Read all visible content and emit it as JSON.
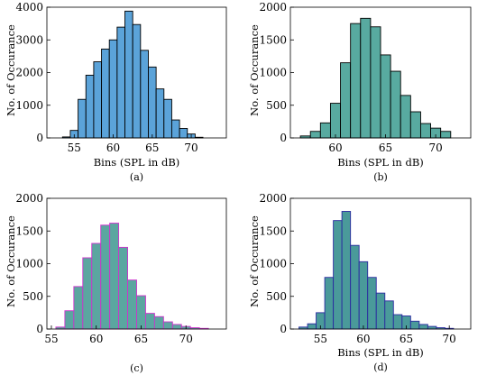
{
  "chart_data": [
    {
      "type": "bar",
      "caption": "(a)",
      "xlabel": "Bins (SPL in dB)",
      "ylabel": "No. of Occurance",
      "xlim": [
        51.5,
        74.5
      ],
      "ylim": [
        0,
        4000
      ],
      "xticks": [
        55,
        60,
        65,
        70
      ],
      "yticks": [
        0,
        1000,
        2000,
        3000,
        4000
      ],
      "bin_width": 1,
      "bin_centers": [
        54,
        55,
        56,
        57,
        58,
        59,
        60,
        61,
        62,
        63,
        64,
        65,
        66,
        67,
        68,
        69,
        70,
        71
      ],
      "values": [
        30,
        230,
        1180,
        1920,
        2330,
        2720,
        3000,
        3390,
        3880,
        3470,
        2680,
        2170,
        1500,
        1180,
        550,
        290,
        120,
        20
      ],
      "fill": "#5ba3d9",
      "edge": "#000000"
    },
    {
      "type": "bar",
      "caption": "(b)",
      "xlabel": "Bins (SPL in dB)",
      "ylabel": "No. of Occurance",
      "xlim": [
        55.5,
        73.5
      ],
      "ylim": [
        0,
        2000
      ],
      "xticks": [
        60,
        65,
        70
      ],
      "yticks": [
        0,
        500,
        1000,
        1500,
        2000
      ],
      "bin_width": 1,
      "bin_centers": [
        57,
        58,
        59,
        60,
        61,
        62,
        63,
        64,
        65,
        66,
        67,
        68,
        69,
        70,
        71
      ],
      "values": [
        30,
        100,
        230,
        530,
        1150,
        1750,
        1830,
        1700,
        1270,
        1020,
        650,
        400,
        220,
        150,
        100
      ],
      "fill": "#58aaa0",
      "edge": "#000000"
    },
    {
      "type": "bar",
      "caption": "(c)",
      "xlabel": "",
      "ylabel": "No. of Occurance",
      "xlim": [
        54.5,
        74.5
      ],
      "ylim": [
        0,
        2000
      ],
      "xticks": [
        55,
        60,
        65,
        70
      ],
      "yticks": [
        0,
        500,
        1000,
        1500,
        2000
      ],
      "bin_width": 1,
      "bin_centers": [
        56,
        57,
        58,
        59,
        60,
        61,
        62,
        63,
        64,
        65,
        66,
        67,
        68,
        69,
        70,
        71,
        72
      ],
      "values": [
        30,
        280,
        650,
        1090,
        1310,
        1590,
        1620,
        1250,
        750,
        510,
        240,
        190,
        110,
        70,
        40,
        20,
        10
      ],
      "fill": "#5ba6a0",
      "edge": "#cc33cc"
    },
    {
      "type": "bar",
      "caption": "(d)",
      "xlabel": "Bins (SPL in dB)",
      "ylabel": "No. of Occurance",
      "xlim": [
        51.5,
        72.5
      ],
      "ylim": [
        0,
        2000
      ],
      "xticks": [
        55,
        60,
        65,
        70
      ],
      "yticks": [
        0,
        500,
        1000,
        1500,
        2000
      ],
      "bin_width": 1,
      "bin_centers": [
        53,
        54,
        55,
        56,
        57,
        58,
        59,
        60,
        61,
        62,
        63,
        64,
        65,
        66,
        67,
        68,
        69,
        70
      ],
      "values": [
        30,
        80,
        250,
        790,
        1660,
        1800,
        1280,
        1030,
        790,
        550,
        430,
        220,
        200,
        120,
        70,
        40,
        20,
        10
      ],
      "fill": "#4a9a9a",
      "edge": "#2a2aa0"
    }
  ]
}
